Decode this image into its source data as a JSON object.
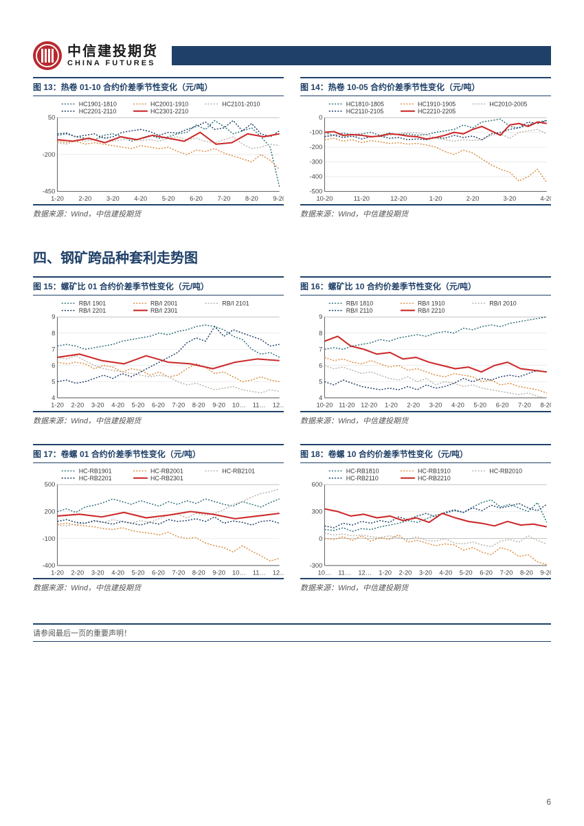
{
  "brand": {
    "cn": "中信建投期货",
    "en": "CHINA FUTURES"
  },
  "colors": {
    "header_bar": "#1f4068",
    "rule": "#1f4068",
    "series": {
      "teal": "#2b6f7a",
      "orange": "#d98c3f",
      "gray": "#b8b2a7",
      "navy": "#1f4068",
      "red": "#cc2a2a"
    },
    "axis": "#666666",
    "grid": "#cccccc"
  },
  "section_title": "四、钢矿跨品种套利走势图",
  "data_source_label": "数据来源：Wind，中信建投期货",
  "footer_note": "请参阅最后一页的重要声明！",
  "page_number": "6",
  "charts": {
    "c13": {
      "title": "图 13：热卷 01-10 合约价差季节性变化（元/吨）",
      "legend": [
        "HC1901-1810",
        "HC2001-1910",
        "HC2101-2010",
        "HC2201-2110",
        "HC2301-2210"
      ],
      "legend_colors": [
        "teal",
        "orange",
        "gray",
        "navy",
        "red"
      ],
      "legend_styles": [
        "dotted",
        "dotted",
        "dotted",
        "dotted",
        "solid"
      ],
      "x_labels": [
        "1-20",
        "2-20",
        "3-20",
        "4-20",
        "5-20",
        "6-20",
        "7-20",
        "8-20",
        "9-20"
      ],
      "y_ticks": [
        50,
        -200,
        -450
      ],
      "ylim": [
        -450,
        50
      ],
      "series": {
        "s1": [
          -70,
          -60,
          -80,
          -90,
          -100,
          -70,
          -60,
          -80,
          -110,
          -90,
          -70,
          -90,
          -80,
          -60,
          -50,
          0,
          -30,
          30,
          -10,
          -60,
          -40,
          -20,
          -80,
          -150,
          -420
        ],
        "s2": [
          -110,
          -120,
          -110,
          -130,
          -120,
          -130,
          -140,
          -150,
          -160,
          -140,
          -150,
          -160,
          -150,
          -180,
          -200,
          -170,
          -180,
          -160,
          -190,
          -210,
          -230,
          -250,
          -200,
          -240,
          -300
        ],
        "s3": [
          -120,
          -130,
          -100,
          -110,
          -100,
          -80,
          -110,
          -100,
          -90,
          -105,
          -100,
          -110,
          -90,
          -80,
          -100,
          -90,
          -110,
          -120,
          -100,
          -80,
          -130,
          -160,
          -150,
          -130,
          -140
        ],
        "s4": [
          -60,
          -55,
          -80,
          -70,
          -60,
          -90,
          -80,
          -50,
          -40,
          -30,
          -45,
          -70,
          -50,
          -55,
          -30,
          -10,
          20,
          -30,
          -20,
          30,
          -40,
          10,
          -60,
          -80,
          -40
        ],
        "s5": [
          -100,
          -110,
          -90,
          -120,
          -80,
          -100,
          -70,
          -90,
          -110,
          -50,
          -130,
          -120,
          -60,
          -80,
          -60
        ]
      }
    },
    "c14": {
      "title": "图 14：热卷 10-05 合约价差季节性变化（元/吨）",
      "legend": [
        "HC1810-1805",
        "HC1910-1905",
        "HC2010-2005",
        "HC2110-2105",
        "HC2210-2205"
      ],
      "legend_colors": [
        "teal",
        "orange",
        "gray",
        "navy",
        "red"
      ],
      "legend_styles": [
        "dotted",
        "dotted",
        "dotted",
        "dotted",
        "solid"
      ],
      "x_labels": [
        "10-20",
        "11-20",
        "12-20",
        "1-20",
        "2-20",
        "3-20",
        "4-20"
      ],
      "y_ticks": [
        0,
        -100,
        -200,
        -300,
        -400,
        -500
      ],
      "ylim": [
        -500,
        0
      ],
      "series": {
        "s1": [
          -100,
          -120,
          -105,
          -115,
          -110,
          -100,
          -120,
          -105,
          -115,
          -110,
          -120,
          -115,
          -100,
          -90,
          -80,
          -50,
          -70,
          -30,
          -20,
          -10,
          -60,
          -70,
          -50,
          -30,
          -20
        ],
        "s2": [
          -150,
          -140,
          -160,
          -150,
          -170,
          -155,
          -165,
          -175,
          -170,
          -180,
          -175,
          -185,
          -200,
          -230,
          -250,
          -220,
          -240,
          -280,
          -320,
          -350,
          -370,
          -430,
          -400,
          -350,
          -440
        ],
        "s3": [
          -120,
          -115,
          -125,
          -130,
          -120,
          -125,
          -130,
          -120,
          -110,
          -100,
          -105,
          -115,
          -140,
          -150,
          -160,
          -150,
          -155,
          -150,
          -120,
          -110,
          -140,
          -100,
          -90,
          -80,
          -110
        ],
        "s4": [
          -130,
          -120,
          -135,
          -125,
          -145,
          -130,
          -125,
          -140,
          -135,
          -150,
          -145,
          -150,
          -135,
          -140,
          -120,
          -135,
          -125,
          -150,
          -110,
          -100,
          -80,
          -70,
          -30,
          -40,
          -20
        ],
        "s5": [
          -100,
          -95,
          -120,
          -115,
          -120,
          -130,
          -125,
          -110,
          -115,
          -125,
          -130,
          -145,
          -135,
          -120,
          -100,
          -110,
          -80,
          -60,
          -90,
          -120,
          -50,
          -40,
          -60,
          -30,
          -40
        ]
      }
    },
    "c15": {
      "title": "图 15：螺矿比 01 合约价差季节性变化（元/吨）",
      "legend": [
        "RB/I 1901",
        "RB/I 2001",
        "RB/I 2101",
        "RB/I 2201",
        "RB/I 2301"
      ],
      "legend_colors": [
        "teal",
        "orange",
        "gray",
        "navy",
        "red"
      ],
      "legend_styles": [
        "dotted",
        "dotted",
        "dotted",
        "dotted",
        "solid"
      ],
      "x_labels": [
        "1-20",
        "2-20",
        "3-20",
        "4-20",
        "5-20",
        "6-20",
        "7-20",
        "8-20",
        "9-20",
        "10…",
        "11…",
        "12…"
      ],
      "y_ticks": [
        9,
        8,
        7,
        6,
        5,
        4
      ],
      "ylim": [
        4,
        9
      ],
      "series": {
        "s1": [
          7.2,
          7.3,
          7.2,
          7.0,
          7.1,
          7.2,
          7.3,
          7.5,
          7.6,
          7.7,
          7.8,
          8.0,
          7.9,
          8.1,
          8.2,
          8.4,
          8.5,
          8.4,
          8.2,
          7.8,
          7.6,
          7.0,
          6.7,
          6.8,
          6.5
        ],
        "s2": [
          6.2,
          6.1,
          6.2,
          6.1,
          5.8,
          6.0,
          5.9,
          5.6,
          5.8,
          5.7,
          5.4,
          5.6,
          5.3,
          5.4,
          5.8,
          6.1,
          5.9,
          5.5,
          5.6,
          5.3,
          5.0,
          5.1,
          5.3,
          5.1,
          5.0
        ],
        "s3": [
          6.5,
          6.4,
          6.6,
          6.3,
          6.0,
          5.8,
          5.7,
          5.6,
          5.5,
          5.4,
          5.3,
          5.4,
          5.3,
          5.0,
          4.8,
          4.9,
          4.7,
          4.5,
          4.6,
          4.7,
          4.5,
          4.4,
          4.3,
          4.5,
          4.4
        ],
        "s4": [
          5.0,
          5.1,
          4.9,
          5.0,
          5.2,
          5.4,
          5.2,
          5.5,
          5.3,
          5.6,
          5.9,
          6.2,
          6.5,
          6.8,
          7.4,
          7.7,
          7.5,
          8.4,
          7.8,
          8.2,
          8.0,
          7.8,
          7.6,
          7.2,
          7.3
        ],
        "s5": [
          6.5,
          6.7,
          6.3,
          6.1,
          6.6,
          6.2,
          6.1,
          5.8,
          6.2,
          6.4,
          6.3
        ]
      }
    },
    "c16": {
      "title": "图 16：螺矿比 10 合约价差季节性变化（元/吨）",
      "legend": [
        "RB/I 1810",
        "RB/I 1910",
        "RB/I 2010",
        "RB/I 2110",
        "RB/I 2210"
      ],
      "legend_colors": [
        "teal",
        "orange",
        "gray",
        "navy",
        "red"
      ],
      "legend_styles": [
        "dotted",
        "dotted",
        "dotted",
        "dotted",
        "solid"
      ],
      "x_labels": [
        "10-20",
        "11-20",
        "12-20",
        "1-20",
        "2-20",
        "3-20",
        "4-20",
        "5-20",
        "6-20",
        "7-20",
        "8-20"
      ],
      "y_ticks": [
        9,
        8,
        7,
        6,
        5,
        4
      ],
      "ylim": [
        4,
        9
      ],
      "series": {
        "s1": [
          7.0,
          7.1,
          7.0,
          7.2,
          7.3,
          7.4,
          7.6,
          7.5,
          7.7,
          7.8,
          7.9,
          7.8,
          8.0,
          8.1,
          8.0,
          8.3,
          8.2,
          8.4,
          8.5,
          8.4,
          8.6,
          8.7,
          8.8,
          8.9,
          9.0
        ],
        "s2": [
          6.5,
          6.3,
          6.4,
          6.2,
          6.1,
          6.3,
          6.1,
          5.9,
          6.0,
          5.7,
          5.8,
          5.6,
          5.4,
          5.3,
          5.5,
          5.4,
          5.3,
          5.0,
          5.1,
          4.8,
          4.9,
          4.7,
          4.6,
          4.5,
          4.3
        ],
        "s3": [
          6.0,
          5.8,
          5.9,
          5.7,
          5.5,
          5.6,
          5.4,
          5.2,
          5.1,
          5.3,
          5.0,
          5.2,
          4.8,
          5.0,
          4.9,
          4.7,
          4.8,
          4.6,
          4.5,
          4.4,
          4.3,
          4.2,
          4.3,
          4.1,
          4.0
        ],
        "s4": [
          5.0,
          4.8,
          5.1,
          4.9,
          4.7,
          4.6,
          4.5,
          4.6,
          4.5,
          4.7,
          4.5,
          4.8,
          4.6,
          4.7,
          4.9,
          5.2,
          5.0,
          5.2,
          5.1,
          5.3,
          5.4,
          5.3,
          5.5,
          5.7,
          5.6
        ],
        "s5": [
          7.5,
          7.8,
          7.2,
          7.0,
          6.7,
          6.8,
          6.4,
          6.5,
          6.2,
          6.0,
          5.8,
          5.9,
          5.6,
          6.0,
          6.2,
          5.8,
          5.7,
          5.6
        ]
      }
    },
    "c17": {
      "title": "图 17：卷螺 01 合约价差季节性变化（元/吨）",
      "legend": [
        "HC-RB1901",
        "HC-RB2001",
        "HC-RB2101",
        "HC-RB2201",
        "HC-RB2301"
      ],
      "legend_colors": [
        "teal",
        "orange",
        "gray",
        "navy",
        "red"
      ],
      "legend_styles": [
        "dotted",
        "dotted",
        "dotted",
        "dotted",
        "solid"
      ],
      "x_labels": [
        "1-20",
        "2-20",
        "3-20",
        "4-20",
        "5-20",
        "6-20",
        "7-20",
        "8-20",
        "9-20",
        "10…",
        "11…",
        "12…"
      ],
      "y_ticks": [
        500,
        200,
        -100,
        -400
      ],
      "ylim": [
        -400,
        500
      ],
      "series": {
        "s1": [
          200,
          230,
          190,
          250,
          270,
          300,
          340,
          310,
          280,
          320,
          290,
          260,
          310,
          280,
          320,
          290,
          340,
          310,
          280,
          260,
          310,
          280,
          250,
          300,
          340
        ],
        "s2": [
          60,
          70,
          50,
          40,
          30,
          10,
          0,
          20,
          -10,
          -30,
          -40,
          -60,
          -30,
          -80,
          -100,
          -90,
          -150,
          -180,
          -200,
          -250,
          -180,
          -240,
          -290,
          -350,
          -320
        ],
        "s3": [
          50,
          40,
          60,
          70,
          90,
          80,
          110,
          90,
          70,
          100,
          80,
          120,
          160,
          170,
          130,
          180,
          160,
          180,
          220,
          280,
          310,
          360,
          400,
          420,
          450
        ],
        "s4": [
          90,
          110,
          80,
          70,
          100,
          80,
          60,
          90,
          70,
          50,
          80,
          60,
          110,
          90,
          100,
          120,
          90,
          140,
          70,
          95,
          80,
          50,
          90,
          100,
          70
        ],
        "s5": [
          150,
          170,
          140,
          190,
          130,
          160,
          200,
          170,
          120,
          150,
          180
        ]
      }
    },
    "c18": {
      "title": "图 18：卷螺 10 合约价差季节性变化（元/吨）",
      "legend": [
        "HC-RB1810",
        "HC-RB1910",
        "HC-RB2010",
        "HC-RB2110",
        "HC-RB2210"
      ],
      "legend_colors": [
        "teal",
        "orange",
        "gray",
        "navy",
        "red"
      ],
      "legend_styles": [
        "dotted",
        "dotted",
        "dotted",
        "dotted",
        "solid"
      ],
      "x_labels": [
        "10…",
        "11…",
        "12…",
        "1-20",
        "2-20",
        "3-20",
        "4-20",
        "5-20",
        "6-20",
        "7-20",
        "8-20",
        "9-20"
      ],
      "y_ticks": [
        600,
        300,
        0,
        -300
      ],
      "ylim": [
        -300,
        600
      ],
      "series": {
        "s1": [
          100,
          90,
          120,
          80,
          110,
          100,
          130,
          150,
          170,
          200,
          180,
          220,
          260,
          280,
          310,
          290,
          350,
          400,
          430,
          350,
          380,
          340,
          300,
          400,
          180
        ],
        "s2": [
          0,
          -10,
          20,
          -20,
          30,
          -30,
          10,
          -10,
          40,
          -40,
          -20,
          -50,
          -80,
          -60,
          -70,
          -130,
          -100,
          -150,
          -180,
          -100,
          -130,
          -200,
          -180,
          -260,
          -290
        ],
        "s3": [
          60,
          40,
          50,
          30,
          40,
          20,
          10,
          30,
          10,
          -10,
          20,
          -20,
          -30,
          0,
          -50,
          -60,
          -40,
          -70,
          -90,
          -30,
          -10,
          -40,
          30,
          -20,
          -60
        ],
        "s4": [
          140,
          120,
          170,
          150,
          190,
          170,
          200,
          180,
          240,
          210,
          250,
          280,
          240,
          290,
          320,
          290,
          340,
          310,
          370,
          340,
          360,
          390,
          340,
          310,
          380
        ],
        "s5": [
          330,
          300,
          250,
          270,
          230,
          250,
          200,
          230,
          180,
          280,
          230,
          190,
          170,
          140,
          190,
          150,
          160,
          130
        ]
      }
    }
  }
}
